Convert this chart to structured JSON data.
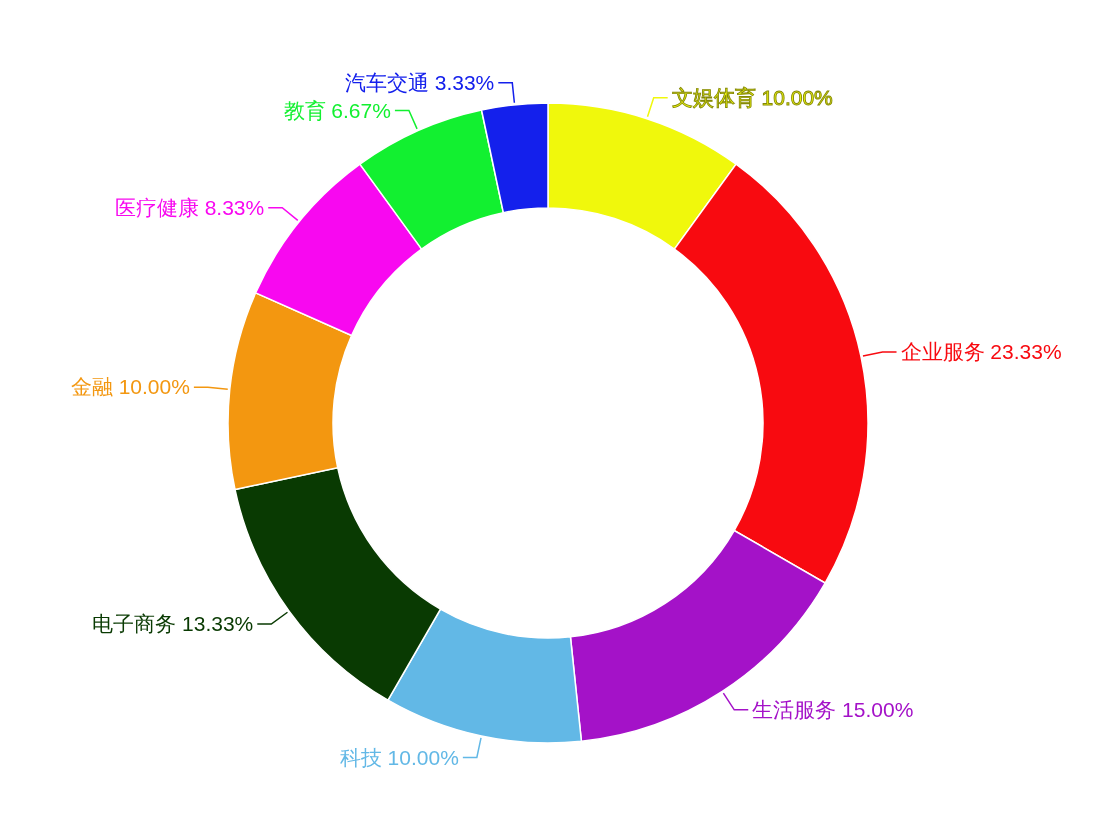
{
  "chart_data": {
    "type": "donut",
    "categories": [
      "文娱体育",
      "企业服务",
      "生活服务",
      "科技",
      "电子商务",
      "金融",
      "医疗健康",
      "教育",
      "汽车交通"
    ],
    "values": [
      10.0,
      23.33,
      15.0,
      10.0,
      13.33,
      10.0,
      8.33,
      6.67,
      3.33
    ],
    "value_labels": [
      "10.00%",
      "23.33%",
      "15.00%",
      "10.00%",
      "13.33%",
      "10.00%",
      "8.33%",
      "6.67%",
      "3.33%"
    ],
    "colors": [
      "#f0f80c",
      "#f80a10",
      "#a412c8",
      "#62b8e6",
      "#093a02",
      "#f39710",
      "#f808f0",
      "#12f030",
      "#1420ec"
    ]
  }
}
